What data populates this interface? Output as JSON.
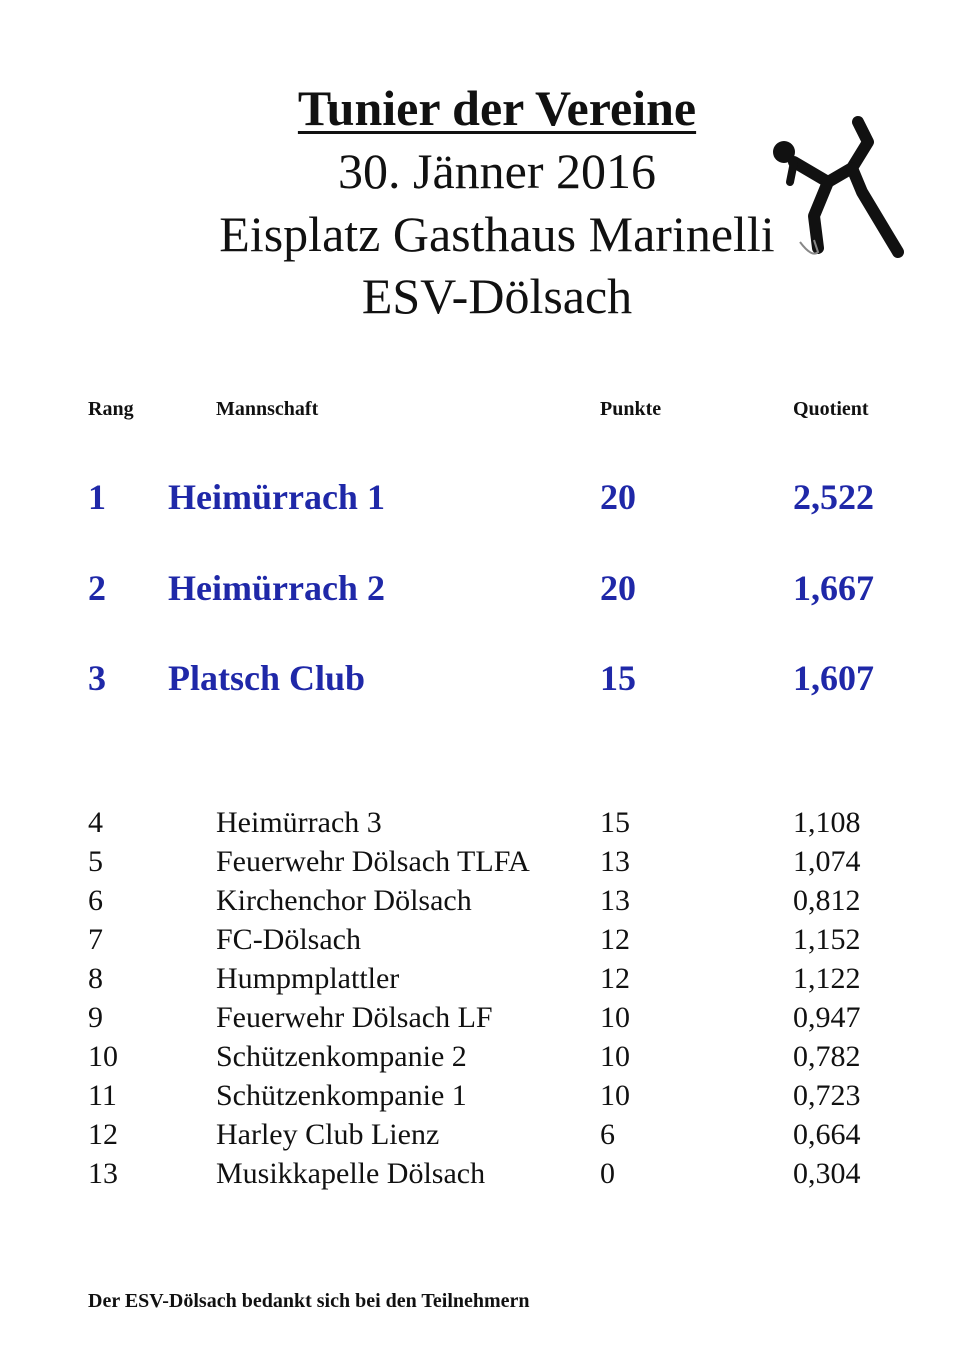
{
  "header": {
    "title": "Tunier der Vereine",
    "date": "30. Jänner 2016",
    "venue": "Eisplatz Gasthaus Marinelli",
    "club": "ESV-Dölsach"
  },
  "table": {
    "columns": [
      "Rang",
      "Mannschaft",
      "Punkte",
      "Quotient"
    ],
    "top3": [
      {
        "rank": "1",
        "team": "Heimürrach 1",
        "points": "20",
        "quotient": "2,522"
      },
      {
        "rank": "2",
        "team": "Heimürrach 2",
        "points": "20",
        "quotient": "1,667"
      },
      {
        "rank": "3",
        "team": "Platsch Club",
        "points": "15",
        "quotient": "1,607"
      }
    ],
    "rest": [
      {
        "rank": "4",
        "team": "Heimürrach 3",
        "points": "15",
        "quotient": "1,108"
      },
      {
        "rank": "5",
        "team": "Feuerwehr Dölsach TLFA",
        "points": "13",
        "quotient": "1,074"
      },
      {
        "rank": "6",
        "team": "Kirchenchor Dölsach",
        "points": "13",
        "quotient": "0,812"
      },
      {
        "rank": "7",
        "team": "FC-Dölsach",
        "points": "12",
        "quotient": "1,152"
      },
      {
        "rank": "8",
        "team": "Humpmplattler",
        "points": "12",
        "quotient": "1,122"
      },
      {
        "rank": "9",
        "team": "Feuerwehr Dölsach LF",
        "points": "10",
        "quotient": "0,947"
      },
      {
        "rank": "10",
        "team": "Schützenkompanie 2",
        "points": "10",
        "quotient": "0,782"
      },
      {
        "rank": "11",
        "team": "Schützenkompanie 1",
        "points": "10",
        "quotient": "0,723"
      },
      {
        "rank": "12",
        "team": "Harley Club Lienz",
        "points": "6",
        "quotient": "0,664"
      },
      {
        "rank": "13",
        "team": "Musikkapelle Dölsach",
        "points": "0",
        "quotient": "0,304"
      }
    ]
  },
  "footer": {
    "text": "Der ESV-Dölsach bedankt sich bei den Teilnehmern"
  },
  "icons": {
    "logo": "ice-stock-sport-player-icon"
  },
  "colors": {
    "top3_text": "#1f28a8",
    "text": "#111111"
  }
}
